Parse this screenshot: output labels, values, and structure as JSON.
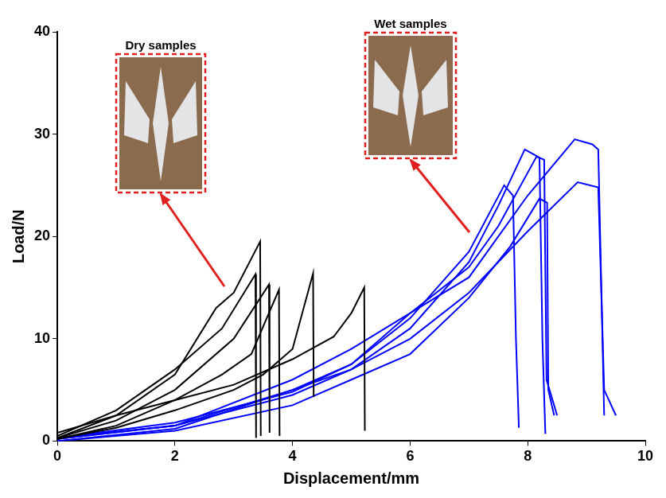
{
  "chart_data": {
    "type": "line",
    "x_label": "Displacement/mm",
    "y_label": "Load/N",
    "xlim": [
      0,
      10
    ],
    "xticks": [
      0,
      2,
      4,
      6,
      8,
      10
    ],
    "ylim": [
      0,
      40
    ],
    "yticks": [
      0,
      10,
      20,
      30,
      40
    ],
    "grid": false,
    "annotations": [
      "Dry samples",
      "Wet samples"
    ],
    "series": [
      {
        "color": "#000000",
        "x": [
          0,
          1,
          2,
          2.7,
          3,
          3.45,
          3.46
        ],
        "values": [
          0.3,
          2.5,
          6.5,
          13,
          14.5,
          19.5,
          0.5
        ]
      },
      {
        "color": "#000000",
        "x": [
          0,
          1,
          2,
          2.8,
          3.37,
          3.38
        ],
        "values": [
          0.5,
          3,
          7,
          11,
          16.3,
          0.3
        ]
      },
      {
        "color": "#000000",
        "x": [
          0,
          1,
          2,
          3,
          3.6,
          3.61
        ],
        "values": [
          0.3,
          2,
          5,
          10,
          15.3,
          0.8
        ]
      },
      {
        "color": "#000000",
        "x": [
          0,
          1,
          2,
          2.8,
          3.3,
          3.77,
          3.78
        ],
        "values": [
          0.2,
          1.5,
          4,
          6.5,
          8.5,
          14.8,
          0.5
        ]
      },
      {
        "color": "#000000",
        "x": [
          0,
          1,
          2,
          3,
          3.5,
          4,
          4.35,
          4.36
        ],
        "values": [
          0.2,
          1.3,
          3,
          5,
          6.5,
          9,
          16.4,
          4.3
        ]
      },
      {
        "color": "#000000",
        "x": [
          0,
          1,
          2,
          3,
          4,
          4.7,
          5,
          5.22,
          5.23
        ],
        "values": [
          0.8,
          2.5,
          4,
          5.5,
          8,
          10.2,
          12.5,
          15,
          1
        ]
      },
      {
        "color": "#0000ff",
        "x": [
          0,
          2,
          4,
          5,
          6,
          7,
          7.6,
          7.75,
          7.8,
          7.85
        ],
        "values": [
          0,
          1.2,
          5,
          7.5,
          12,
          18.5,
          25,
          24,
          10,
          1.3
        ]
      },
      {
        "color": "#0000ff",
        "x": [
          0,
          2,
          4,
          5,
          6,
          7,
          7.5,
          7.95,
          8.2,
          8.25,
          8.3
        ],
        "values": [
          0.2,
          1.5,
          4.5,
          7,
          11,
          17.5,
          23,
          28.5,
          27.7,
          10,
          0.7
        ]
      },
      {
        "color": "#0000ff",
        "x": [
          0,
          2,
          4,
          5,
          6,
          7,
          7.5,
          8.15,
          8.28,
          8.32,
          8.5
        ],
        "values": [
          0.3,
          1.8,
          4.8,
          7.5,
          12.5,
          17,
          21,
          27.8,
          27.5,
          6,
          2.5
        ]
      },
      {
        "color": "#0000ff",
        "x": [
          0,
          2,
          4,
          5,
          6,
          7,
          7.7,
          8.2,
          8.33,
          8.35,
          8.45
        ],
        "values": [
          0,
          1,
          3.5,
          6,
          8.5,
          14,
          19,
          23.7,
          23.3,
          5,
          2.5
        ]
      },
      {
        "color": "#0000ff",
        "x": [
          0,
          2,
          4,
          5,
          6,
          7,
          8,
          8.8,
          9.1,
          9.2,
          9.3
        ],
        "values": [
          0.3,
          1.5,
          6,
          9,
          12.5,
          16,
          24,
          29.5,
          29,
          28.5,
          2.5
        ]
      },
      {
        "color": "#0000ff",
        "x": [
          0,
          2,
          4,
          5,
          6,
          7,
          8,
          8.85,
          9.2,
          9.3,
          9.5
        ],
        "values": [
          0.2,
          1.5,
          5,
          7,
          10,
          14.5,
          20.5,
          25.3,
          24.8,
          5,
          2.5
        ]
      }
    ]
  }
}
